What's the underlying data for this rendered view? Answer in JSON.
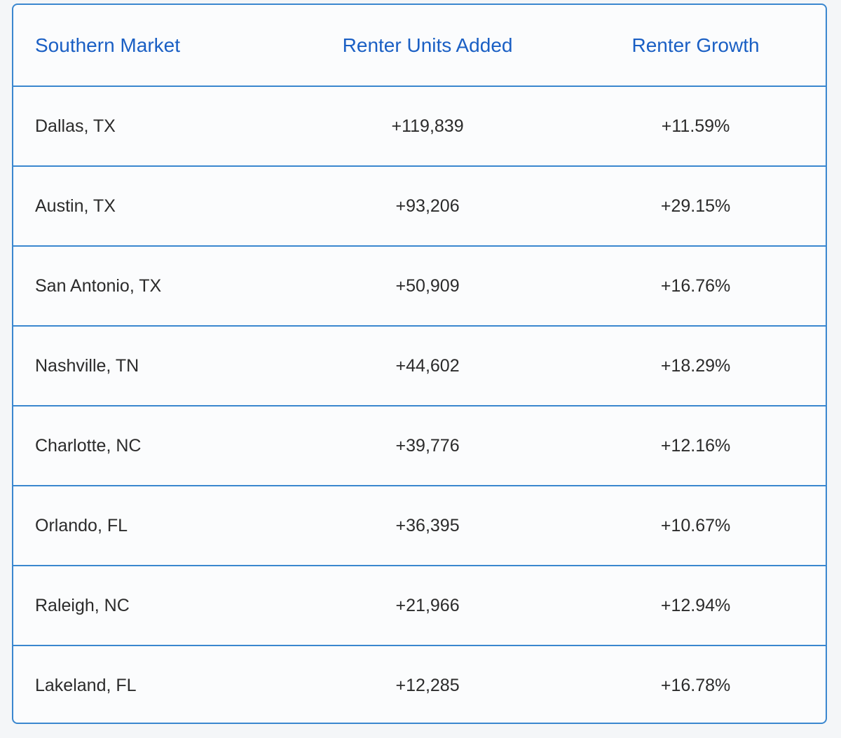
{
  "table": {
    "headers": [
      "Southern Market",
      "Renter Units Added",
      "Renter Growth"
    ],
    "rows": [
      [
        "Dallas, TX",
        "+119,839",
        "+11.59%"
      ],
      [
        "Austin, TX",
        "+93,206",
        "+29.15%"
      ],
      [
        "San Antonio, TX",
        "+50,909",
        "+16.76%"
      ],
      [
        "Nashville, TN",
        "+44,602",
        "+18.29%"
      ],
      [
        "Charlotte, NC",
        "+39,776",
        "+12.16%"
      ],
      [
        "Orlando, FL",
        "+36,395",
        "+10.67%"
      ],
      [
        "Raleigh, NC",
        "+21,966",
        "+12.94%"
      ],
      [
        "Lakeland, FL",
        "+12,285",
        "+16.78%"
      ]
    ]
  },
  "colors": {
    "border": "#3a87cf",
    "header_text": "#1a5fc4",
    "body_text": "#2b2b2b",
    "background": "#fbfcfd"
  }
}
